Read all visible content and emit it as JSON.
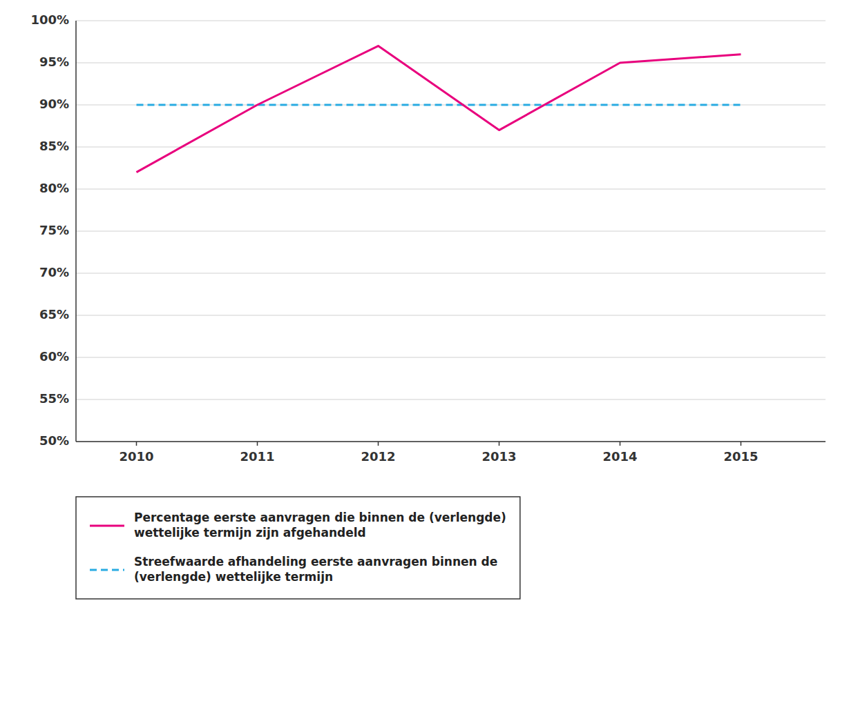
{
  "chart_data": {
    "type": "line",
    "x": [
      2010,
      2011,
      2012,
      2013,
      2014,
      2015
    ],
    "series": [
      {
        "name": "Percentage eerste aanvragen die binnen de (verlengde)\nwettelijke termijn zijn afgehandeld",
        "color": "#E8007D",
        "line_style": "solid",
        "values": [
          82,
          90,
          97,
          87,
          95,
          96
        ]
      },
      {
        "name": "Streefwaarde afhandeling eerste aanvragen binnen de\n(verlengde) wettelijke termijn",
        "color": "#29ABE2",
        "line_style": "dashed",
        "values": [
          90,
          90,
          90,
          90,
          90,
          90
        ]
      }
    ],
    "xlim": [
      2009.5,
      2015.7
    ],
    "xticks": [
      2010,
      2011,
      2012,
      2013,
      2014,
      2015
    ],
    "ylim": [
      50,
      100
    ],
    "yticks": [
      {
        "value": 50,
        "label": "50%"
      },
      {
        "value": 55,
        "label": "55%"
      },
      {
        "value": 60,
        "label": "60%"
      },
      {
        "value": 65,
        "label": "65%"
      },
      {
        "value": 70,
        "label": "70%"
      },
      {
        "value": 75,
        "label": "75%"
      },
      {
        "value": 80,
        "label": "80%"
      },
      {
        "value": 85,
        "label": "85%"
      },
      {
        "value": 90,
        "label": "90%"
      },
      {
        "value": 95,
        "label": "95%"
      },
      {
        "value": 100,
        "label": "100%"
      }
    ],
    "grid": true,
    "legend": "bottom"
  }
}
